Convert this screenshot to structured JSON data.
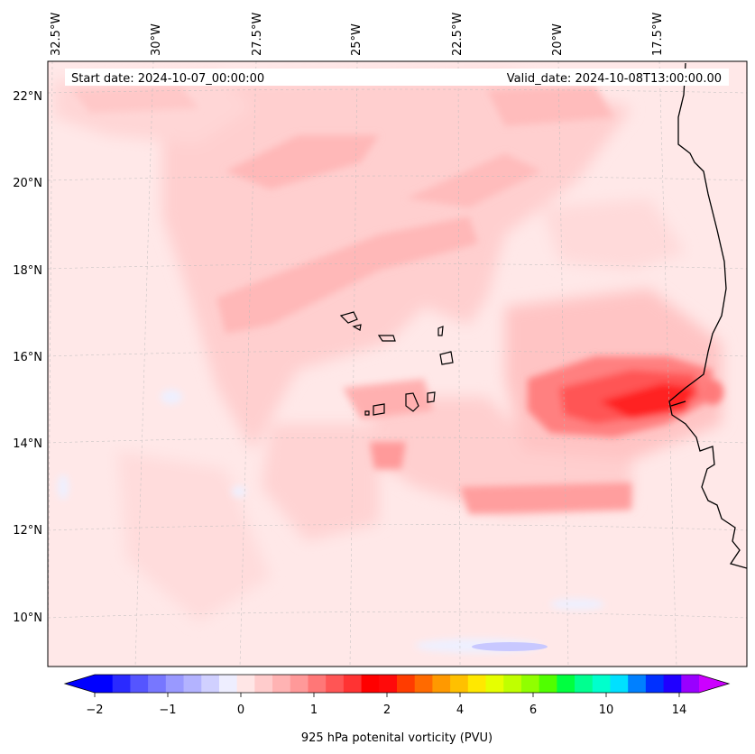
{
  "map": {
    "start_label": "Start date: 2024-10-07_00:00:00",
    "valid_label": "Valid_date: 2024-10-08T13:00:00.00",
    "lon_labels": [
      "32.5°W",
      "30°W",
      "27.5°W",
      "25°W",
      "22.5°W",
      "20°W",
      "17.5°W"
    ],
    "lat_labels": [
      "22°N",
      "20°N",
      "18°N",
      "16°N",
      "14°N",
      "12°N",
      "10°N"
    ],
    "colorbar": {
      "ticks": [
        "-2",
        "-1",
        "0",
        "1",
        "2",
        "4",
        "6",
        "10",
        "14"
      ],
      "label": "925 hPa potenital vorticity (PVU)",
      "colors": [
        "#0000ff",
        "#2a2aff",
        "#5555ff",
        "#7777ff",
        "#9999ff",
        "#b3b3ff",
        "#d0d0ff",
        "#eeeeff",
        "#ffe6e6",
        "#ffcccc",
        "#ffb3b3",
        "#ff9999",
        "#ff7777",
        "#ff5555",
        "#ff3333",
        "#ff0000",
        "#ff0a0a",
        "#ff3c00",
        "#ff6a00",
        "#ff9900",
        "#ffc000",
        "#ffe800",
        "#e6ff00",
        "#c0ff00",
        "#90ff00",
        "#50ff00",
        "#00ff40",
        "#00ff90",
        "#00ffcc",
        "#00e0ff",
        "#0080ff",
        "#0030ff",
        "#2000ff",
        "#9900ff"
      ],
      "under_color": "#0000ff",
      "over_color": "#cc00ff"
    }
  }
}
